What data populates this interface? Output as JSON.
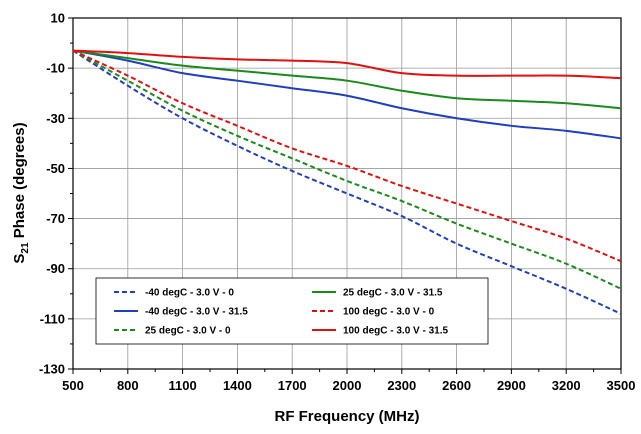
{
  "chart_data": {
    "type": "line",
    "title": "",
    "xlabel": "RF Frequency (MHz)",
    "ylabel": {
      "prefix": "S",
      "subscript": "21",
      "suffix": " Phase (degrees)"
    },
    "xlim": [
      500,
      3500
    ],
    "ylim": [
      -130,
      10
    ],
    "x_ticks": [
      500,
      800,
      1100,
      1400,
      1700,
      2000,
      2300,
      2600,
      2900,
      3200,
      3500
    ],
    "y_ticks": [
      10,
      -10,
      -30,
      -50,
      -70,
      -90,
      -110,
      -130
    ],
    "grid": true,
    "legend_placement": "bottom-left",
    "series": [
      {
        "name": "-40 degC - 3.0 V - 0",
        "color": "#1f3fbf",
        "dash": "dashed",
        "points": [
          [
            500,
            -3
          ],
          [
            800,
            -17
          ],
          [
            1100,
            -30
          ],
          [
            1400,
            -41
          ],
          [
            1700,
            -51
          ],
          [
            2000,
            -60
          ],
          [
            2300,
            -69
          ],
          [
            2600,
            -80
          ],
          [
            2900,
            -89
          ],
          [
            3200,
            -98
          ],
          [
            3500,
            -108
          ]
        ]
      },
      {
        "name": "-40 degC - 3.0 V - 31.5",
        "color": "#1f3fbf",
        "dash": "solid",
        "points": [
          [
            500,
            -3
          ],
          [
            800,
            -7
          ],
          [
            1100,
            -12
          ],
          [
            1400,
            -15
          ],
          [
            1700,
            -18
          ],
          [
            2000,
            -21
          ],
          [
            2300,
            -26
          ],
          [
            2600,
            -30
          ],
          [
            2900,
            -33
          ],
          [
            3200,
            -35
          ],
          [
            3500,
            -38
          ]
        ]
      },
      {
        "name": "25 degC - 3.0 V - 0",
        "color": "#1a8a1a",
        "dash": "dashed",
        "points": [
          [
            500,
            -3
          ],
          [
            800,
            -15
          ],
          [
            1100,
            -27
          ],
          [
            1400,
            -37
          ],
          [
            1700,
            -46
          ],
          [
            2000,
            -55
          ],
          [
            2300,
            -63
          ],
          [
            2600,
            -72
          ],
          [
            2900,
            -80
          ],
          [
            3200,
            -88
          ],
          [
            3500,
            -98
          ]
        ]
      },
      {
        "name": "25 degC - 3.0 V - 31.5",
        "color": "#1a8a1a",
        "dash": "solid",
        "points": [
          [
            500,
            -3
          ],
          [
            800,
            -6
          ],
          [
            1100,
            -9
          ],
          [
            1400,
            -11
          ],
          [
            1700,
            -13
          ],
          [
            2000,
            -15
          ],
          [
            2300,
            -19
          ],
          [
            2600,
            -22
          ],
          [
            2900,
            -23
          ],
          [
            3200,
            -24
          ],
          [
            3500,
            -26
          ]
        ]
      },
      {
        "name": "100 degC - 3.0 V - 0",
        "color": "#e01010",
        "dash": "dashed",
        "points": [
          [
            500,
            -3
          ],
          [
            800,
            -13
          ],
          [
            1100,
            -24
          ],
          [
            1400,
            -33
          ],
          [
            1700,
            -42
          ],
          [
            2000,
            -49
          ],
          [
            2300,
            -57
          ],
          [
            2600,
            -64
          ],
          [
            2900,
            -71
          ],
          [
            3200,
            -78
          ],
          [
            3500,
            -87
          ]
        ]
      },
      {
        "name": "100 degC - 3.0 V - 31.5",
        "color": "#e01010",
        "dash": "solid",
        "points": [
          [
            500,
            -3
          ],
          [
            800,
            -4
          ],
          [
            1100,
            -5.5
          ],
          [
            1400,
            -6.5
          ],
          [
            1700,
            -7
          ],
          [
            2000,
            -8
          ],
          [
            2300,
            -12
          ],
          [
            2600,
            -13
          ],
          [
            2900,
            -13
          ],
          [
            3200,
            -13
          ],
          [
            3500,
            -14
          ]
        ]
      }
    ]
  }
}
